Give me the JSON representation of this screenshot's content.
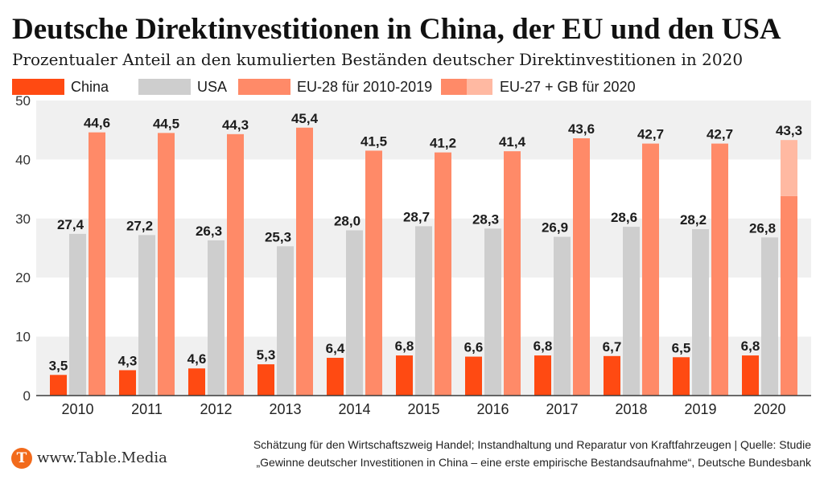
{
  "chart_data": {
    "type": "bar",
    "title": "Deutsche Direktinvestitionen in China, der EU und den USA",
    "subtitle": "Prozentualer Anteil an den kumulierten Beständen deutscher Direktinvestitionen in 2020",
    "xlabel": "",
    "ylabel": "",
    "ylim": [
      0,
      50
    ],
    "yticks": [
      0,
      10,
      20,
      30,
      40,
      50
    ],
    "grid": true,
    "legend_position": "top-left",
    "categories": [
      "2010",
      "2011",
      "2012",
      "2013",
      "2014",
      "2015",
      "2016",
      "2017",
      "2018",
      "2019",
      "2020"
    ],
    "series": [
      {
        "name": "China",
        "color": "#ff4a12",
        "values": [
          3.5,
          4.3,
          4.6,
          5.3,
          6.4,
          6.8,
          6.6,
          6.8,
          6.7,
          6.5,
          6.8
        ]
      },
      {
        "name": "USA",
        "color": "#cecece",
        "values": [
          27.4,
          27.2,
          26.3,
          25.3,
          28.0,
          28.7,
          28.3,
          26.9,
          28.6,
          28.2,
          26.8
        ]
      },
      {
        "name": "EU-28 für 2010-2019",
        "color": "#ff8a68",
        "values": [
          44.6,
          44.5,
          44.3,
          45.4,
          41.5,
          41.2,
          41.4,
          43.6,
          42.7,
          42.7,
          43.3
        ]
      }
    ],
    "split_2020": {
      "name": "EU-27 + GB für 2020",
      "eu27_value": 33.8,
      "eu27_color": "#ff8a68",
      "gb_color": "#ffb9a2"
    }
  },
  "footer": {
    "logo_letter": "T",
    "brand": "www.Table.Media",
    "note_line1": "Schätzung für den Wirtschaftszweig Handel; Instandhaltung und Reparatur von Kraftfahrzeugen | Quelle: Studie",
    "note_line2": "„Gewinne deutscher Investitionen in China – eine erste empirische Bestandsaufnahme“, Deutsche Bundesbank"
  },
  "colors": {
    "brand": "#f26a1b",
    "band": "#f0f0f0",
    "axis": "#3a3a3a"
  }
}
